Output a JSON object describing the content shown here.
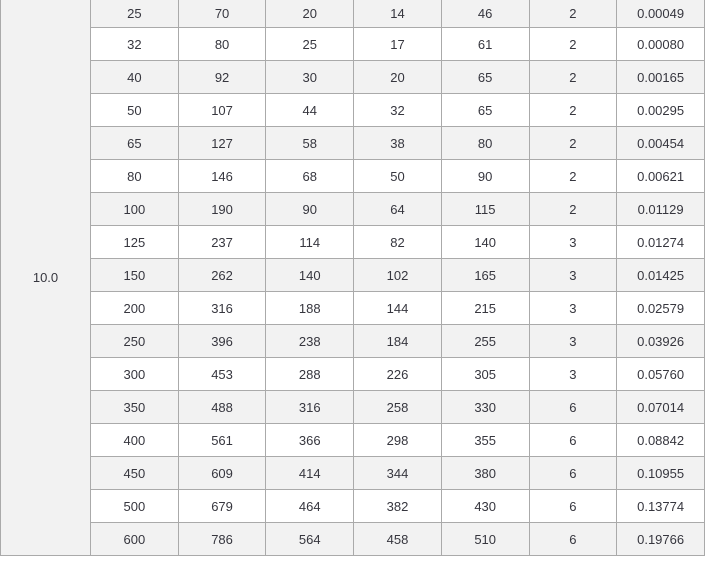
{
  "table": {
    "group_label": "10.0",
    "rows": [
      [
        "25",
        "70",
        "20",
        "14",
        "46",
        "2",
        "0.00049"
      ],
      [
        "32",
        "80",
        "25",
        "17",
        "61",
        "2",
        "0.00080"
      ],
      [
        "40",
        "92",
        "30",
        "20",
        "65",
        "2",
        "0.00165"
      ],
      [
        "50",
        "107",
        "44",
        "32",
        "65",
        "2",
        "0.00295"
      ],
      [
        "65",
        "127",
        "58",
        "38",
        "80",
        "2",
        "0.00454"
      ],
      [
        "80",
        "146",
        "68",
        "50",
        "90",
        "2",
        "0.00621"
      ],
      [
        "100",
        "190",
        "90",
        "64",
        "115",
        "2",
        "0.01129"
      ],
      [
        "125",
        "237",
        "114",
        "82",
        "140",
        "3",
        "0.01274"
      ],
      [
        "150",
        "262",
        "140",
        "102",
        "165",
        "3",
        "0.01425"
      ],
      [
        "200",
        "316",
        "188",
        "144",
        "215",
        "3",
        "0.02579"
      ],
      [
        "250",
        "396",
        "238",
        "184",
        "255",
        "3",
        "0.03926"
      ],
      [
        "300",
        "453",
        "288",
        "226",
        "305",
        "3",
        "0.05760"
      ],
      [
        "350",
        "488",
        "316",
        "258",
        "330",
        "6",
        "0.07014"
      ],
      [
        "400",
        "561",
        "366",
        "298",
        "355",
        "6",
        "0.08842"
      ],
      [
        "450",
        "609",
        "414",
        "344",
        "380",
        "6",
        "0.10955"
      ],
      [
        "500",
        "679",
        "464",
        "382",
        "430",
        "6",
        "0.13774"
      ],
      [
        "600",
        "786",
        "564",
        "458",
        "510",
        "6",
        "0.19766"
      ]
    ]
  },
  "colors": {
    "row_stripe_bg": "#f2f2f2",
    "row_bg": "#ffffff",
    "border": "#aaaaaa",
    "text": "#36363e"
  }
}
